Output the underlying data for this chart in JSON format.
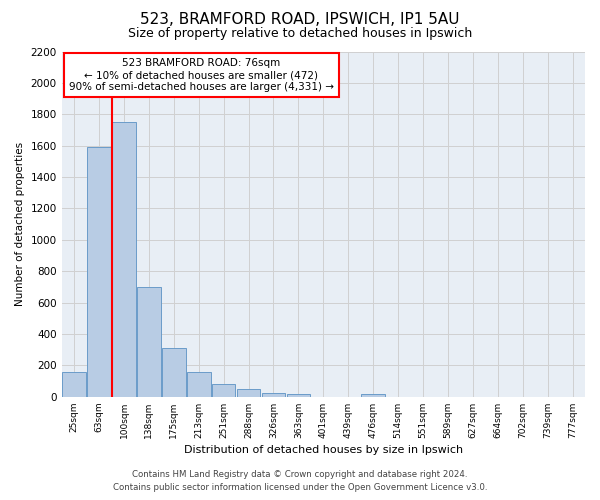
{
  "title": "523, BRAMFORD ROAD, IPSWICH, IP1 5AU",
  "subtitle": "Size of property relative to detached houses in Ipswich",
  "xlabel": "Distribution of detached houses by size in Ipswich",
  "ylabel": "Number of detached properties",
  "bar_labels": [
    "25sqm",
    "63sqm",
    "100sqm",
    "138sqm",
    "175sqm",
    "213sqm",
    "251sqm",
    "288sqm",
    "326sqm",
    "363sqm",
    "401sqm",
    "439sqm",
    "476sqm",
    "514sqm",
    "551sqm",
    "589sqm",
    "627sqm",
    "664sqm",
    "702sqm",
    "739sqm",
    "777sqm"
  ],
  "bar_values": [
    160,
    1590,
    1750,
    700,
    310,
    155,
    80,
    50,
    25,
    15,
    0,
    0,
    15,
    0,
    0,
    0,
    0,
    0,
    0,
    0,
    0
  ],
  "bar_color": "#b8cce4",
  "bar_edge_color": "#6a9cc9",
  "property_line_x": 1.5,
  "annotation_line1": "523 BRAMFORD ROAD: 76sqm",
  "annotation_line2": "← 10% of detached houses are smaller (472)",
  "annotation_line3": "90% of semi-detached houses are larger (4,331) →",
  "ylim": [
    0,
    2200
  ],
  "yticks": [
    0,
    200,
    400,
    600,
    800,
    1000,
    1200,
    1400,
    1600,
    1800,
    2000,
    2200
  ],
  "footer1": "Contains HM Land Registry data © Crown copyright and database right 2024.",
  "footer2": "Contains public sector information licensed under the Open Government Licence v3.0.",
  "background_color": "#ffffff",
  "grid_color": "#d0d0d0",
  "plot_bg_color": "#e8eef5"
}
